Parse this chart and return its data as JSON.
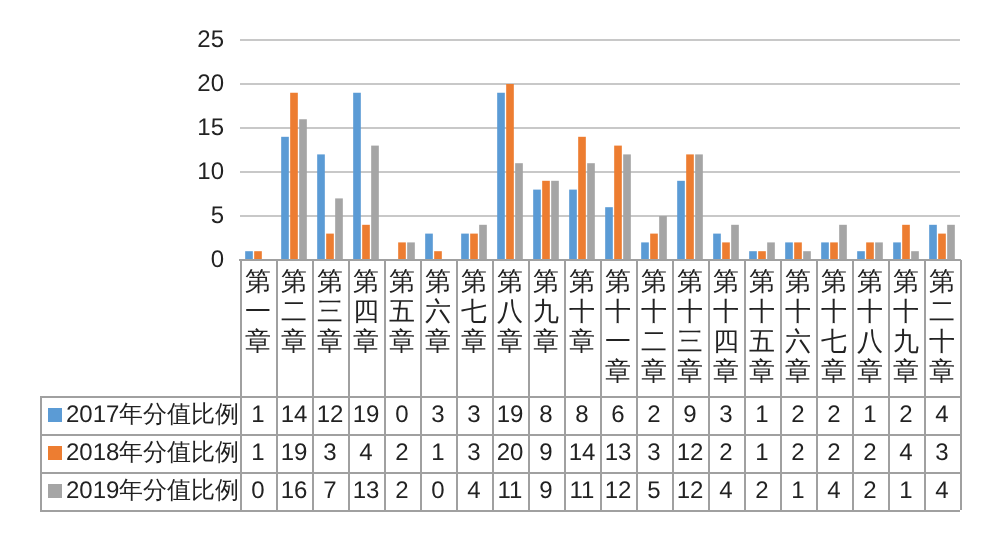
{
  "chart_data": {
    "type": "bar",
    "categories": [
      "第一章",
      "第二章",
      "第三章",
      "第四章",
      "第五章",
      "第六章",
      "第七章",
      "第八章",
      "第九章",
      "第十章",
      "第十一章",
      "第十二章",
      "第十三章",
      "第十四章",
      "第十五章",
      "第十六章",
      "第十七章",
      "第十八章",
      "第十九章",
      "第二十章"
    ],
    "series": [
      {
        "name": "2017年分值比例",
        "color": "#5b9bd5",
        "values": [
          1,
          14,
          12,
          19,
          0,
          3,
          3,
          19,
          8,
          8,
          6,
          2,
          9,
          3,
          1,
          2,
          2,
          1,
          2,
          4
        ]
      },
      {
        "name": "2018年分值比例",
        "color": "#ed7d31",
        "values": [
          1,
          19,
          3,
          4,
          2,
          1,
          3,
          20,
          9,
          14,
          13,
          3,
          12,
          2,
          1,
          2,
          2,
          2,
          4,
          3
        ]
      },
      {
        "name": "2019年分值比例",
        "color": "#a5a5a5",
        "values": [
          0,
          16,
          7,
          13,
          2,
          0,
          4,
          11,
          9,
          11,
          12,
          5,
          12,
          4,
          2,
          1,
          4,
          2,
          1,
          4
        ]
      }
    ],
    "ylim": [
      0,
      25
    ],
    "yticks": [
      0,
      5,
      10,
      15,
      20,
      25
    ],
    "grid": "y",
    "legend": "bottom",
    "data_labels": true
  }
}
